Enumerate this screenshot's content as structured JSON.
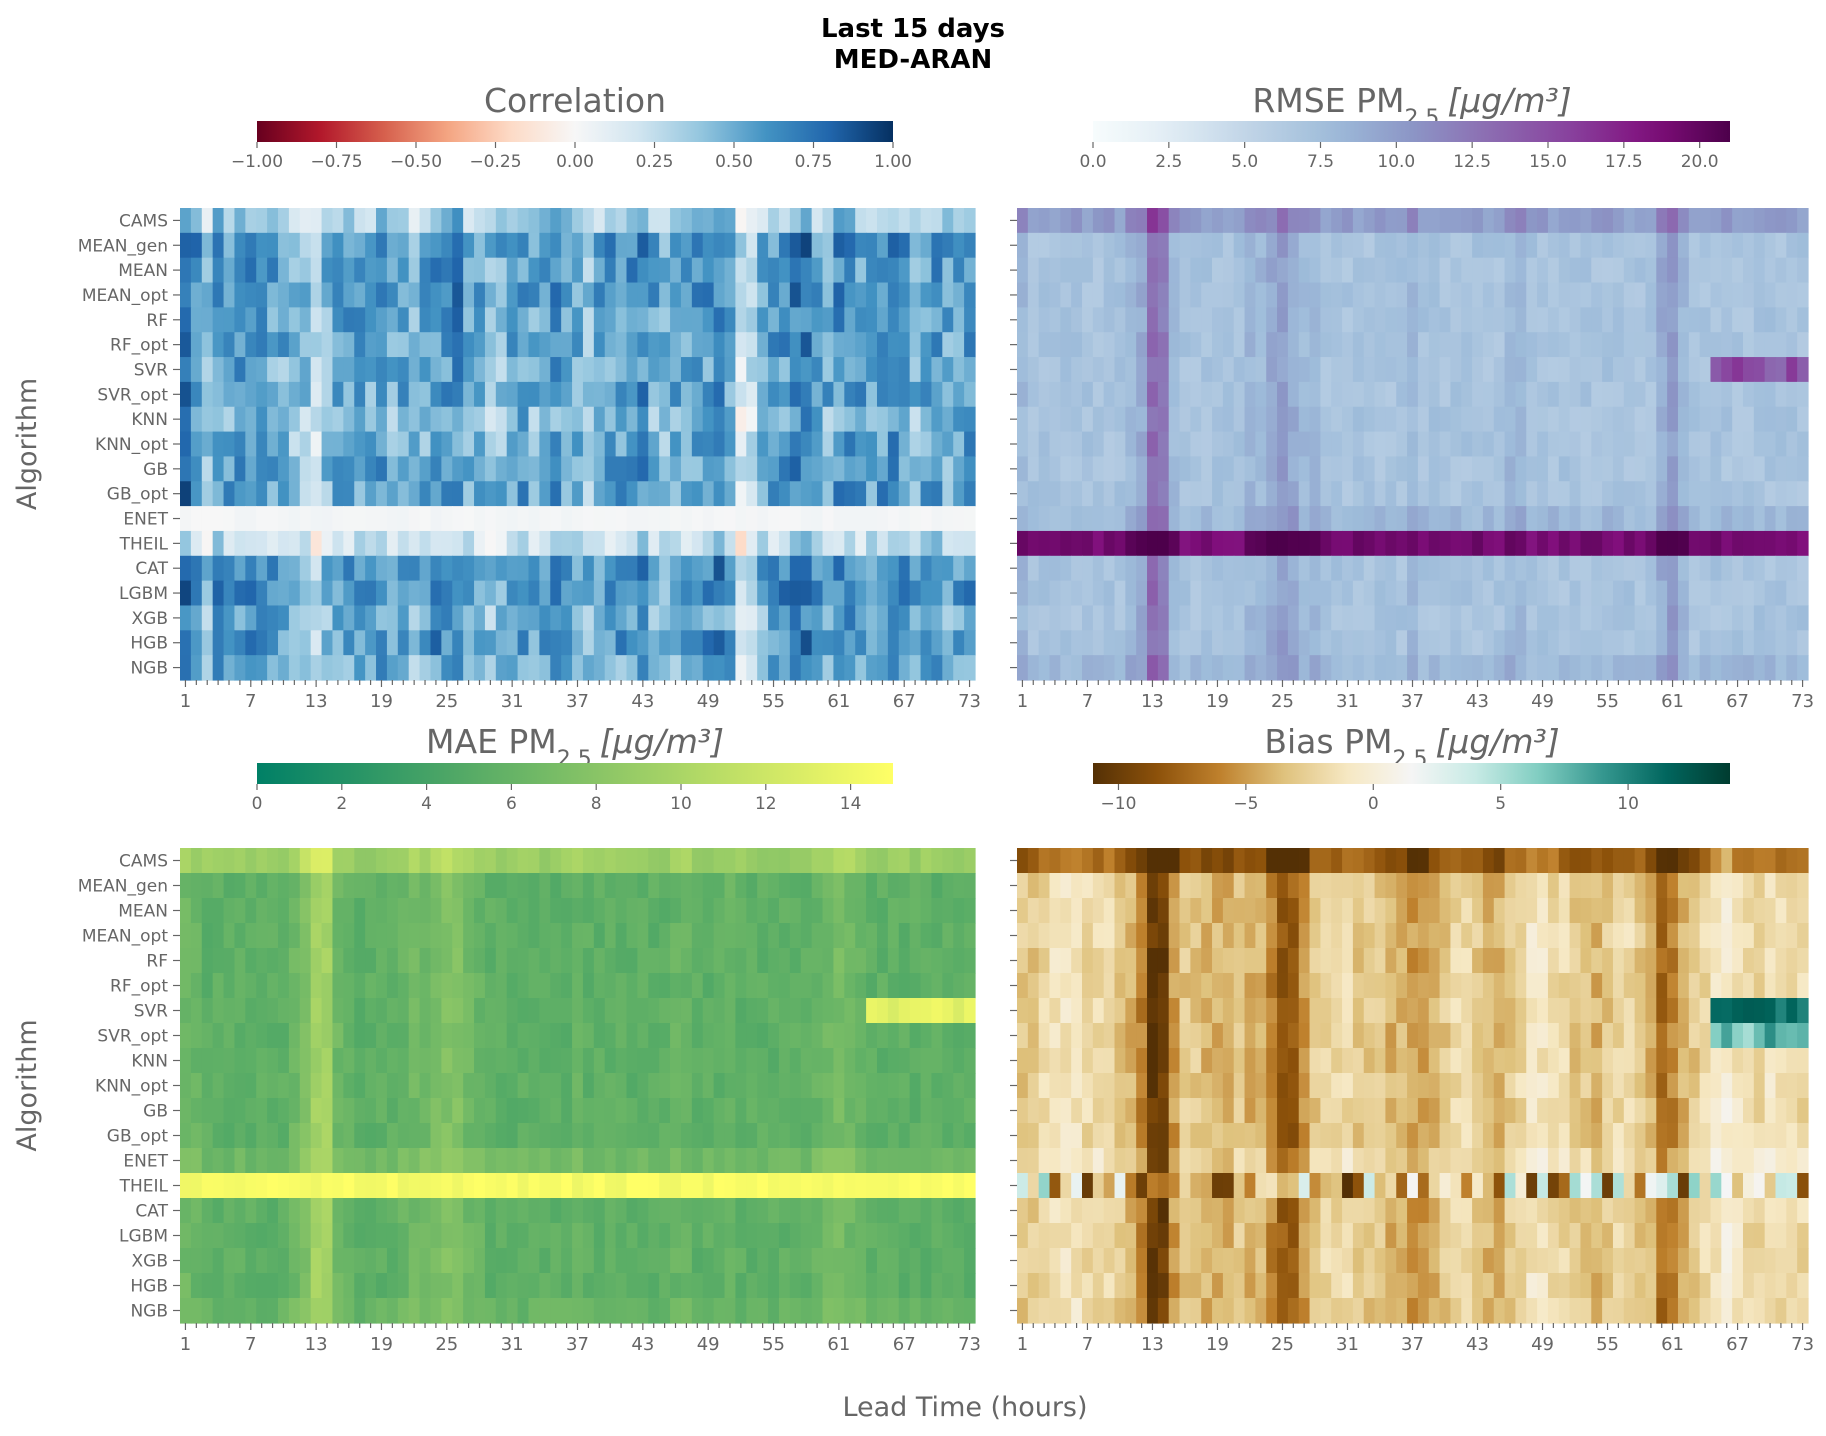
{
  "figure": {
    "title_line1": "Last 15 days",
    "title_line2": "MED-ARAN",
    "xlabel": "Lead Time (hours)",
    "ylabel": "Algorithm"
  },
  "colors": {
    "text": "#555555",
    "muted": "#666666",
    "title": "#000000"
  },
  "chart_data": [
    {
      "type": "heatmap",
      "id": "correlation",
      "title": "Correlation",
      "subscript": "",
      "unit": "",
      "ylabel": "Algorithm",
      "colormap": "RdBu",
      "vmin": -1,
      "vmax": 1,
      "colorbar_ticks": [
        -1.0,
        -0.75,
        -0.5,
        -0.25,
        0.0,
        0.25,
        0.5,
        0.75,
        1.0
      ],
      "colorbar_tick_labels": [
        "−1.00",
        "−0.75",
        "−0.50",
        "−0.25",
        "0.00",
        "0.25",
        "0.50",
        "0.75",
        "1.00"
      ],
      "rows": [
        "CAMS",
        "MEAN_gen",
        "MEAN",
        "MEAN_opt",
        "RF",
        "RF_opt",
        "SVR",
        "SVR_opt",
        "KNN",
        "KNN_opt",
        "GB",
        "GB_opt",
        "ENET",
        "THEIL",
        "CAT",
        "LGBM",
        "XGB",
        "HGB",
        "NGB"
      ],
      "x_ticks": [
        "1",
        "7",
        "13",
        "19",
        "25",
        "31",
        "37",
        "43",
        "49",
        "55",
        "61",
        "67",
        "73"
      ],
      "n_cols": 73,
      "row_base": [
        0.3,
        0.55,
        0.5,
        0.55,
        0.5,
        0.5,
        0.45,
        0.5,
        0.4,
        0.45,
        0.5,
        0.5,
        0.0,
        0.2,
        0.55,
        0.55,
        0.45,
        0.55,
        0.45
      ],
      "col_profile": [
        0.6,
        0.2,
        -0.1,
        0.2,
        0.1,
        0.2,
        0.3,
        0.3,
        0.1,
        0.0,
        -0.1,
        -0.2,
        -0.5,
        -0.1,
        0.0,
        0.1,
        0.1,
        0.0,
        0.2,
        0.0,
        0.1,
        -0.1,
        0.0,
        0.2,
        0.2,
        0.3,
        -0.1,
        0.0,
        -0.2,
        -0.1,
        0.1,
        0.2,
        0.0,
        0.1,
        0.2,
        0.1,
        0.0,
        -0.2,
        0.0,
        0.1,
        0.1,
        0.2,
        0.3,
        0.0,
        -0.1,
        0.0,
        0.1,
        0.1,
        0.2,
        0.3,
        0.1,
        -0.6,
        -0.4,
        0.0,
        0.1,
        0.2,
        0.3,
        0.4,
        0.1,
        0.0,
        0.2,
        0.3,
        0.1,
        0.0,
        0.2,
        0.3,
        0.1,
        0.0,
        0.1,
        0.2,
        0.0,
        0.1,
        0.2
      ],
      "row_overrides": [
        {
          "row": 12,
          "value": 0.02,
          "jitter": 0.02
        }
      ],
      "amplitude": 0.5,
      "jitter": 0.18
    },
    {
      "type": "heatmap",
      "id": "rmse",
      "title": "RMSE PM",
      "subscript": "2.5",
      "unit": "[μg/m³]",
      "ylabel": "",
      "colormap": "BuPu",
      "vmin": 0,
      "vmax": 21,
      "colorbar_ticks": [
        0,
        2.5,
        5,
        7.5,
        10,
        12.5,
        15,
        17.5,
        20
      ],
      "colorbar_tick_labels": [
        "0.0",
        "2.5",
        "5.0",
        "7.5",
        "10.0",
        "12.5",
        "15.0",
        "17.5",
        "20.0"
      ],
      "rows": [
        "CAMS",
        "MEAN_gen",
        "MEAN",
        "MEAN_opt",
        "RF",
        "RF_opt",
        "SVR",
        "SVR_opt",
        "KNN",
        "KNN_opt",
        "GB",
        "GB_opt",
        "ENET",
        "THEIL",
        "CAT",
        "LGBM",
        "XGB",
        "HGB",
        "NGB"
      ],
      "x_ticks": [
        "1",
        "7",
        "13",
        "19",
        "25",
        "31",
        "37",
        "43",
        "49",
        "55",
        "61",
        "67",
        "73"
      ],
      "n_cols": 73,
      "row_base": [
        10,
        7,
        7,
        7,
        7,
        7,
        7,
        7,
        7,
        7,
        7,
        7,
        8,
        19,
        7,
        7,
        7,
        7,
        8
      ],
      "col_profile": [
        1,
        0,
        0,
        0,
        0,
        0,
        0,
        0,
        0,
        0,
        1,
        2,
        6,
        5,
        1,
        0,
        0,
        0,
        0,
        0,
        0,
        1,
        1,
        2,
        3,
        2,
        1,
        1,
        0,
        0,
        0,
        0,
        0,
        0,
        0,
        0,
        1,
        0,
        0,
        0,
        0,
        0,
        0,
        0,
        0,
        1,
        1,
        0,
        0,
        0,
        0,
        0,
        0,
        0,
        0,
        0,
        0,
        0,
        0,
        2,
        3,
        1,
        0,
        0,
        0,
        0,
        0,
        0,
        0,
        0,
        0,
        0,
        0
      ],
      "row_overrides": [
        {
          "row": 6,
          "from_col": 64,
          "value": 15,
          "jitter": 2
        }
      ],
      "amplitude": 1,
      "jitter": 0.9
    },
    {
      "type": "heatmap",
      "id": "mae",
      "title": "MAE PM",
      "subscript": "2.5",
      "unit": "[μg/m³]",
      "ylabel": "Algorithm",
      "colormap": "summer",
      "vmin": 0,
      "vmax": 15,
      "colorbar_ticks": [
        0,
        2,
        4,
        6,
        8,
        10,
        12,
        14
      ],
      "colorbar_tick_labels": [
        "0",
        "2",
        "4",
        "6",
        "8",
        "10",
        "12",
        "14"
      ],
      "rows": [
        "CAMS",
        "MEAN_gen",
        "MEAN",
        "MEAN_opt",
        "RF",
        "RF_opt",
        "SVR",
        "SVR_opt",
        "KNN",
        "KNN_opt",
        "GB",
        "GB_opt",
        "ENET",
        "THEIL",
        "CAT",
        "LGBM",
        "XGB",
        "HGB",
        "NGB"
      ],
      "x_ticks": [
        "1",
        "7",
        "13",
        "19",
        "25",
        "31",
        "37",
        "43",
        "49",
        "55",
        "61",
        "67",
        "73"
      ],
      "n_cols": 73,
      "row_base": [
        9,
        5.5,
        5.5,
        5.5,
        5.5,
        5.5,
        5.5,
        5.5,
        5.5,
        5.5,
        5.5,
        5.5,
        6.5,
        14.5,
        5.5,
        5.5,
        5.5,
        5.5,
        6
      ],
      "col_profile": [
        1,
        0.5,
        0,
        0,
        0,
        0,
        0,
        0,
        0,
        0,
        1,
        2,
        4,
        4,
        1,
        0.5,
        0,
        0,
        0,
        0,
        0.5,
        1,
        1,
        1.5,
        2,
        2,
        1,
        0.5,
        0,
        0,
        0,
        0,
        0,
        0,
        0,
        0,
        0.5,
        0,
        0,
        0,
        0,
        0,
        0,
        0,
        0,
        0.5,
        0.5,
        0,
        0,
        0,
        0.5,
        0,
        0,
        0,
        0,
        0,
        0,
        0,
        0.5,
        1,
        1.5,
        1,
        0.5,
        0,
        0,
        0,
        0,
        0,
        0,
        0,
        0,
        0,
        0
      ],
      "row_overrides": [
        {
          "row": 6,
          "from_col": 63,
          "value": 13.5,
          "jitter": 0.8
        },
        {
          "row": 13,
          "value": 14.5,
          "jitter": 0.6
        }
      ],
      "amplitude": 1,
      "jitter": 0.7
    },
    {
      "type": "heatmap",
      "id": "bias",
      "title": "Bias PM",
      "subscript": "2.5",
      "unit": "[μg/m³]",
      "ylabel": "",
      "colormap": "BrBG",
      "vmin": -11,
      "vmax": 14,
      "colorbar_ticks": [
        -10,
        -5,
        0,
        5,
        10
      ],
      "colorbar_tick_labels": [
        "−10",
        "−5",
        "0",
        "5",
        "10"
      ],
      "rows": [
        "CAMS",
        "MEAN_gen",
        "MEAN",
        "MEAN_opt",
        "RF",
        "RF_opt",
        "SVR",
        "SVR_opt",
        "KNN",
        "KNN_opt",
        "GB",
        "GB_opt",
        "ENET",
        "THEIL",
        "CAT",
        "LGBM",
        "XGB",
        "HGB",
        "NGB"
      ],
      "x_ticks": [
        "1",
        "7",
        "13",
        "19",
        "25",
        "31",
        "37",
        "43",
        "49",
        "55",
        "61",
        "67",
        "73"
      ],
      "n_cols": 73,
      "row_base": [
        -7,
        -2,
        -2,
        -2,
        -2,
        -2,
        -2,
        -2,
        -2,
        -2,
        -2,
        -2,
        -1,
        -4,
        -2,
        -2,
        -2,
        -2,
        -2
      ],
      "col_profile": [
        -1,
        -1,
        0,
        1,
        1,
        1,
        0,
        0,
        0,
        -1,
        -2,
        -4,
        -8,
        -8,
        -3,
        -1,
        -1,
        -2,
        -2,
        -2,
        -1,
        -2,
        -2,
        -4,
        -6,
        -6,
        -3,
        -1,
        0,
        0,
        0,
        -1,
        -1,
        -1,
        -2,
        -2,
        -3,
        -3,
        -2,
        -1,
        0,
        0,
        -1,
        -2,
        -2,
        -1,
        0,
        1,
        1,
        0,
        0,
        -1,
        -1,
        -2,
        -1,
        0,
        0,
        -1,
        -2,
        -5,
        -4,
        -2,
        -1,
        0,
        1,
        2,
        1,
        0,
        0,
        1,
        0,
        0,
        0
      ],
      "row_overrides": [
        {
          "row": 6,
          "from_col": 64,
          "value": 11,
          "jitter": 1.5
        },
        {
          "row": 7,
          "from_col": 64,
          "value": 7,
          "jitter": 3
        },
        {
          "row": 13,
          "value": -3,
          "jitter": 9
        }
      ],
      "amplitude": 1,
      "jitter": 1.2
    }
  ]
}
